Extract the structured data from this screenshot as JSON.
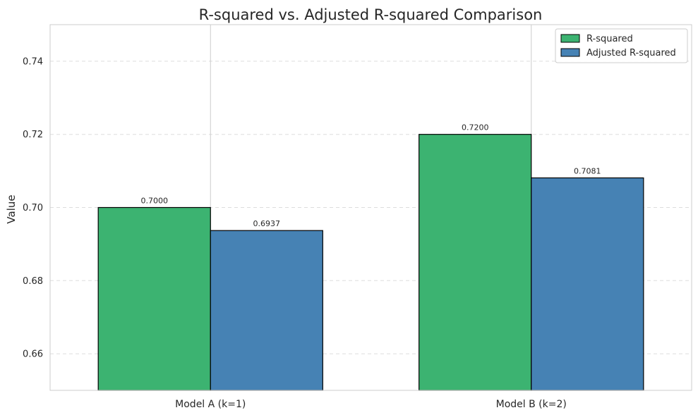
{
  "chart_data": {
    "type": "bar",
    "title": "R-squared vs. Adjusted R-squared Comparison",
    "xlabel": "",
    "ylabel": "Value",
    "categories": [
      "Model A (k=1)",
      "Model B (k=2)"
    ],
    "series": [
      {
        "name": "R-squared",
        "values": [
          0.7,
          0.72
        ],
        "labels": [
          "0.7000",
          "0.7200"
        ],
        "color": "#3cb371"
      },
      {
        "name": "Adjusted R-squared",
        "values": [
          0.6937,
          0.7081
        ],
        "labels": [
          "0.6937",
          "0.7081"
        ],
        "color": "#4682b4"
      }
    ],
    "ylim": [
      0.65,
      0.75
    ],
    "yticks": [
      0.66,
      0.68,
      0.7,
      0.72,
      0.74
    ],
    "ytick_labels": [
      "0.66",
      "0.68",
      "0.70",
      "0.72",
      "0.74"
    ],
    "grid": true,
    "legend_position": "top-right"
  }
}
